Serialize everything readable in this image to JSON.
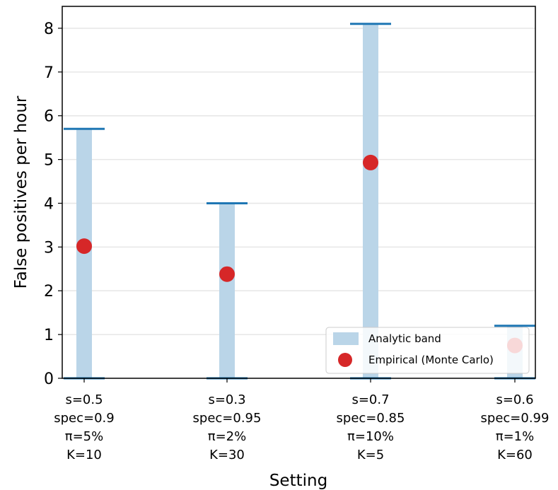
{
  "chart_data": {
    "type": "scatter",
    "xlabel": "Setting",
    "ylabel": "False positives per hour",
    "ylim": [
      0,
      8.5
    ],
    "yticks": [
      0,
      1,
      2,
      3,
      4,
      5,
      6,
      7,
      8
    ],
    "grid": "horizontal",
    "legend_placement": "lower-right",
    "categories": [
      [
        "s=0.5",
        "spec=0.9",
        "π=5%",
        "K=10"
      ],
      [
        "s=0.3",
        "spec=0.95",
        "π=2%",
        "K=30"
      ],
      [
        "s=0.7",
        "spec=0.85",
        "π=10%",
        "K=5"
      ],
      [
        "s=0.6",
        "spec=0.99",
        "π=1%",
        "K=60"
      ]
    ],
    "series": [
      {
        "name": "Analytic band",
        "kind": "band",
        "color": "#bad5e8",
        "cap_color": "#1f77b4",
        "low": [
          0,
          0,
          0,
          0
        ],
        "high": [
          5.7,
          4.0,
          8.1,
          1.2
        ]
      },
      {
        "name": "Empirical (Monte Carlo)",
        "kind": "point",
        "color": "#d62728",
        "values": [
          3.02,
          2.38,
          4.93,
          0.75
        ]
      }
    ]
  }
}
